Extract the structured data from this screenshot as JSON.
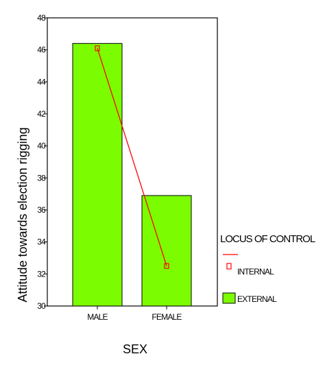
{
  "chart_data": {
    "type": "bar",
    "title": "",
    "xlabel": "SEX",
    "ylabel": "Attitude towards election rigging",
    "categories": [
      "MALE",
      "FEMALE"
    ],
    "ylim": [
      30,
      48
    ],
    "yticks": [
      30,
      32,
      34,
      36,
      38,
      40,
      42,
      44,
      46,
      48
    ],
    "grid": false,
    "legend_position": "right",
    "legend_title": "LOCUS OF CONTROL",
    "series": [
      {
        "name": "EXTERNAL",
        "type": "bar",
        "values": [
          46.4,
          36.9
        ],
        "color": "#7CFC00"
      },
      {
        "name": "INTERNAL",
        "type": "line",
        "values": [
          46.1,
          32.5
        ],
        "color": "#ff0000"
      }
    ]
  }
}
